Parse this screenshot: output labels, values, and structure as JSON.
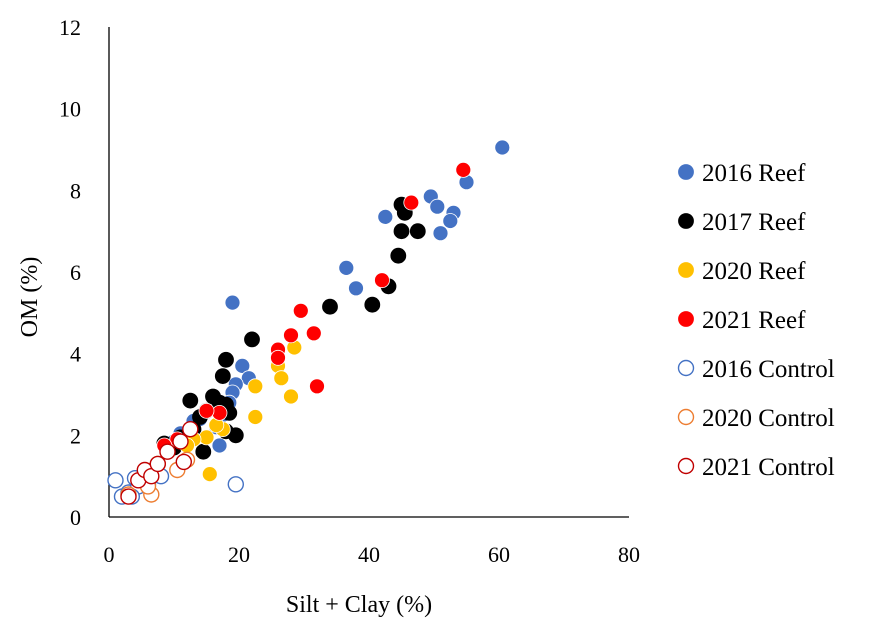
{
  "chart_data": {
    "type": "scatter",
    "title": "",
    "xlabel": "Silt + Clay (%)",
    "ylabel": "OM (%)",
    "xlim": [
      0,
      80
    ],
    "ylim": [
      0,
      12
    ],
    "xticks": [
      0,
      20,
      40,
      60,
      80
    ],
    "yticks": [
      0,
      2,
      4,
      6,
      8,
      10,
      12
    ],
    "grid": false,
    "legend_position": "right",
    "series": [
      {
        "name": "2016 Reef",
        "marker": "filled",
        "color": "#4472C4",
        "points": [
          [
            60.5,
            9.05
          ],
          [
            55,
            8.2
          ],
          [
            49.5,
            7.85
          ],
          [
            50.5,
            7.6
          ],
          [
            53,
            7.45
          ],
          [
            52.5,
            7.25
          ],
          [
            51,
            6.95
          ],
          [
            46.5,
            7.7
          ],
          [
            42.5,
            7.35
          ],
          [
            36.5,
            6.1
          ],
          [
            38,
            5.6
          ],
          [
            19,
            5.25
          ],
          [
            20.5,
            3.7
          ],
          [
            21.5,
            3.4
          ],
          [
            19.5,
            3.25
          ],
          [
            19,
            3.05
          ],
          [
            18.5,
            2.8
          ],
          [
            17.5,
            2.5
          ],
          [
            16.5,
            2.2
          ],
          [
            17,
            1.75
          ],
          [
            14,
            2.4
          ],
          [
            13,
            2.35
          ],
          [
            12,
            2.0
          ],
          [
            11,
            2.05
          ],
          [
            10,
            1.85
          ],
          [
            9,
            1.75
          ]
        ]
      },
      {
        "name": "2017 Reef",
        "marker": "filled",
        "color": "#000000",
        "points": [
          [
            45,
            7.65
          ],
          [
            45.5,
            7.45
          ],
          [
            45,
            7.0
          ],
          [
            47.5,
            7.0
          ],
          [
            44.5,
            6.4
          ],
          [
            43,
            5.65
          ],
          [
            40.5,
            5.2
          ],
          [
            34,
            5.15
          ],
          [
            22,
            4.35
          ],
          [
            18,
            3.85
          ],
          [
            17.5,
            3.45
          ],
          [
            16,
            2.95
          ],
          [
            17,
            2.8
          ],
          [
            18,
            2.75
          ],
          [
            12.5,
            2.85
          ],
          [
            15,
            2.6
          ],
          [
            18.5,
            2.55
          ],
          [
            19.5,
            2.0
          ],
          [
            18,
            2.1
          ],
          [
            14,
            2.45
          ],
          [
            13,
            2.15
          ],
          [
            12,
            1.85
          ],
          [
            14.5,
            1.6
          ],
          [
            11,
            1.95
          ],
          [
            10,
            1.7
          ],
          [
            9,
            1.75
          ],
          [
            8.5,
            1.8
          ]
        ]
      },
      {
        "name": "2020 Reef",
        "marker": "filled",
        "color": "#FFC000",
        "points": [
          [
            28.5,
            4.15
          ],
          [
            26,
            3.7
          ],
          [
            26.5,
            3.4
          ],
          [
            22.5,
            3.2
          ],
          [
            28,
            2.95
          ],
          [
            22.5,
            2.45
          ],
          [
            17.5,
            2.15
          ],
          [
            16.5,
            2.25
          ],
          [
            15,
            1.95
          ],
          [
            13,
            1.9
          ],
          [
            12,
            1.75
          ],
          [
            15.5,
            1.05
          ]
        ]
      },
      {
        "name": "2021 Reef",
        "marker": "filled",
        "color": "#FF0000",
        "points": [
          [
            54.5,
            8.5
          ],
          [
            46.5,
            7.7
          ],
          [
            42,
            5.8
          ],
          [
            29.5,
            5.05
          ],
          [
            28,
            4.45
          ],
          [
            31.5,
            4.5
          ],
          [
            26,
            4.1
          ],
          [
            26,
            3.9
          ],
          [
            32,
            3.2
          ],
          [
            17,
            2.55
          ],
          [
            15,
            2.6
          ],
          [
            10.5,
            1.9
          ],
          [
            8.5,
            1.75
          ]
        ]
      },
      {
        "name": "2016 Control",
        "marker": "open",
        "color": "#4472C4",
        "points": [
          [
            1,
            0.9
          ],
          [
            2,
            0.5
          ],
          [
            3,
            0.6
          ],
          [
            4,
            0.95
          ],
          [
            4.5,
            0.75
          ],
          [
            6,
            0.8
          ],
          [
            8,
            1.0
          ],
          [
            19.5,
            0.8
          ],
          [
            3.5,
            0.5
          ]
        ]
      },
      {
        "name": "2020 Control",
        "marker": "open",
        "color": "#ED7D31",
        "points": [
          [
            3,
            0.55
          ],
          [
            6.5,
            0.55
          ],
          [
            6,
            0.75
          ],
          [
            7.5,
            1.3
          ],
          [
            10.5,
            1.15
          ],
          [
            12,
            1.4
          ]
        ]
      },
      {
        "name": "2021 Control",
        "marker": "open",
        "color": "#C00000",
        "points": [
          [
            3,
            0.5
          ],
          [
            4.5,
            0.9
          ],
          [
            5.5,
            1.15
          ],
          [
            6.5,
            1.0
          ],
          [
            7.5,
            1.3
          ],
          [
            9,
            1.6
          ],
          [
            11,
            1.85
          ],
          [
            11.5,
            1.35
          ],
          [
            12.5,
            2.15
          ]
        ]
      }
    ]
  }
}
